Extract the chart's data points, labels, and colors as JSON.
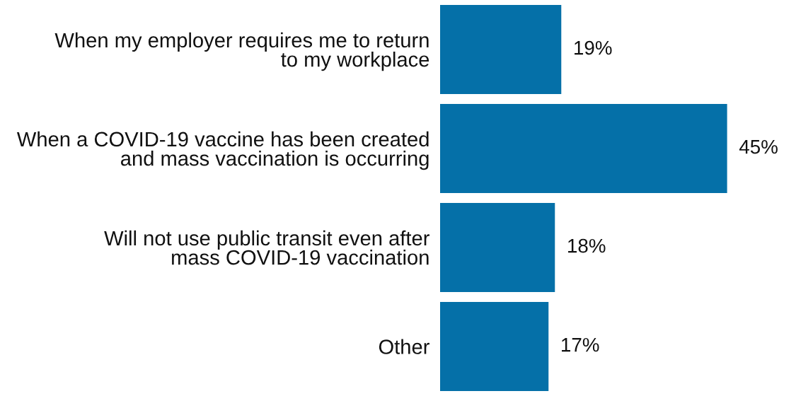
{
  "chart_data": {
    "type": "bar",
    "orientation": "horizontal",
    "categories": [
      "When my employer requires me to return\nto my workplace",
      "When a COVID-19 vaccine has been created\nand mass vaccination is occurring",
      "Will not use public transit even after\nmass COVID-19 vaccination",
      "Other"
    ],
    "values": [
      19,
      45,
      18,
      17
    ],
    "value_labels": [
      "19%",
      "45%",
      "18%",
      "17%"
    ],
    "color": "#0570a8",
    "tick_labels": "y"
  }
}
